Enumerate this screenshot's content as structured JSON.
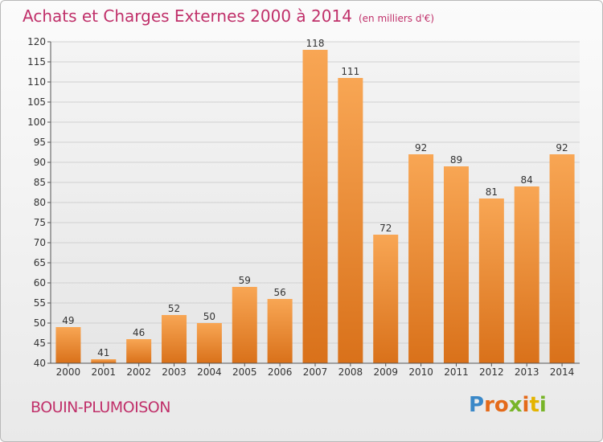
{
  "header": {
    "title": "Achats et Charges Externes 2000 à 2014",
    "subtitle": "(en milliers d'€)"
  },
  "footer": {
    "commune": "BOUIN-PLUMOISON",
    "brand": "Proxiti",
    "brand_colors": [
      "#3a88c8",
      "#e46a1a",
      "#e46a1a",
      "#78b428",
      "#e46a1a",
      "#e4b400",
      "#78b428"
    ]
  },
  "chart_data": {
    "type": "bar",
    "title": "Achats et Charges Externes 2000 à 2014",
    "subtitle": "(en milliers d'€)",
    "categories": [
      "2000",
      "2001",
      "2002",
      "2003",
      "2004",
      "2005",
      "2006",
      "2007",
      "2008",
      "2009",
      "2010",
      "2011",
      "2012",
      "2013",
      "2014"
    ],
    "values": [
      49,
      41,
      46,
      52,
      50,
      59,
      56,
      118,
      111,
      72,
      92,
      89,
      81,
      84,
      92
    ],
    "ylim": [
      40,
      120
    ],
    "yticks": [
      40,
      45,
      50,
      55,
      60,
      65,
      70,
      75,
      80,
      85,
      90,
      95,
      100,
      105,
      110,
      115,
      120
    ],
    "grid": true,
    "legend": "none",
    "bar_color": "#f0862a"
  }
}
